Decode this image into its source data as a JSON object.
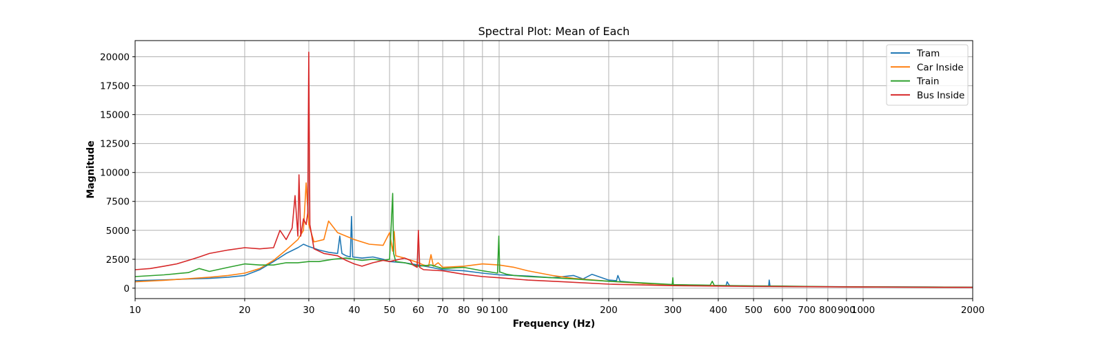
{
  "chart_data": {
    "type": "line",
    "title": "Spectral Plot: Mean of Each",
    "xlabel": "Frequency (Hz)",
    "ylabel": "Magnitude",
    "xscale": "log",
    "xlim": [
      10,
      2000
    ],
    "ylim": [
      -900,
      21400
    ],
    "x_ticks": [
      10,
      20,
      30,
      40,
      50,
      60,
      70,
      80,
      90,
      100,
      200,
      300,
      400,
      500,
      600,
      700,
      800,
      900,
      1000,
      2000
    ],
    "y_ticks": [
      0,
      2500,
      5000,
      7500,
      10000,
      12500,
      15000,
      17500,
      20000
    ],
    "grid": true,
    "legend_position": "upper right",
    "series": [
      {
        "name": "Tram",
        "color": "#1f77b4",
        "x": [
          10,
          12,
          14,
          16,
          18,
          20,
          22,
          24,
          26,
          28,
          29,
          30,
          32,
          34,
          36,
          36.5,
          37,
          38,
          39,
          39.3,
          39.6,
          42,
          45,
          48,
          50,
          55,
          60,
          65,
          70,
          80,
          90,
          100,
          120,
          140,
          160,
          170,
          180,
          200,
          210,
          212,
          215,
          250,
          300,
          400,
          420,
          423,
          430,
          500,
          550,
          552,
          555,
          600,
          700,
          800,
          1000,
          1500,
          2000
        ],
        "y": [
          650,
          720,
          800,
          850,
          950,
          1100,
          1600,
          2300,
          3000,
          3500,
          3800,
          3600,
          3300,
          3100,
          3000,
          4500,
          3000,
          2800,
          2700,
          6200,
          2700,
          2600,
          2700,
          2500,
          2300,
          2200,
          2000,
          1800,
          1600,
          1500,
          1300,
          1150,
          1050,
          900,
          1100,
          800,
          1200,
          700,
          650,
          1100,
          600,
          400,
          300,
          220,
          200,
          550,
          200,
          180,
          170,
          700,
          170,
          160,
          140,
          130,
          120,
          100,
          80
        ]
      },
      {
        "name": "Car Inside",
        "color": "#ff7f0e",
        "x": [
          10,
          12,
          14,
          16,
          18,
          20,
          22,
          24,
          26,
          28,
          29,
          29.5,
          30,
          31,
          33,
          34,
          36,
          38,
          40,
          44,
          48,
          50,
          51,
          51.5,
          52,
          55,
          60,
          62,
          64,
          65,
          66,
          68,
          70,
          80,
          90,
          100,
          110,
          120,
          140,
          160,
          200,
          250,
          300,
          400,
          500,
          700,
          1000,
          1500,
          2000
        ],
        "y": [
          550,
          680,
          820,
          950,
          1100,
          1300,
          1700,
          2400,
          3300,
          4200,
          5000,
          9100,
          5500,
          4000,
          4200,
          5800,
          4800,
          4500,
          4200,
          3800,
          3700,
          4800,
          3200,
          4900,
          2800,
          2600,
          2200,
          2000,
          1900,
          2900,
          1900,
          2200,
          1800,
          1900,
          2100,
          2000,
          1800,
          1500,
          1100,
          850,
          600,
          400,
          300,
          220,
          180,
          140,
          110,
          90,
          70
        ]
      },
      {
        "name": "Train",
        "color": "#2ca02c",
        "x": [
          10,
          12,
          14,
          15,
          16,
          18,
          20,
          22,
          24,
          26,
          28,
          30,
          32,
          35,
          38,
          40,
          42,
          45,
          48,
          50,
          50.6,
          51,
          51.3,
          52,
          55,
          60,
          65,
          70,
          80,
          90,
          99,
          99.8,
          100.4,
          105,
          110,
          120,
          140,
          160,
          200,
          250,
          299,
          300,
          301,
          380,
          385,
          390,
          500,
          600,
          700,
          800,
          1000,
          1500,
          2000
        ],
        "y": [
          1000,
          1150,
          1350,
          1700,
          1450,
          1800,
          2100,
          2000,
          2000,
          2200,
          2200,
          2300,
          2300,
          2500,
          2600,
          2500,
          2400,
          2500,
          2400,
          2500,
          5800,
          8200,
          3000,
          2300,
          2200,
          1900,
          2000,
          1700,
          1800,
          1500,
          1300,
          4500,
          1400,
          1200,
          1100,
          1000,
          900,
          800,
          600,
          450,
          320,
          900,
          300,
          260,
          600,
          240,
          200,
          180,
          150,
          130,
          110,
          100,
          80
        ]
      },
      {
        "name": "Bus Inside",
        "color": "#d62728",
        "x": [
          10,
          11,
          12,
          13,
          14,
          15,
          16,
          18,
          20,
          22,
          24,
          25,
          26,
          27,
          27.5,
          28,
          28.2,
          28.5,
          29,
          29.5,
          29.8,
          30,
          30.2,
          31,
          33,
          36,
          38,
          40,
          42,
          45,
          48,
          50,
          55,
          57,
          58,
          59.5,
          60,
          60.5,
          62,
          70,
          80,
          90,
          100,
          120,
          150,
          200,
          300,
          500,
          1000,
          1500,
          2000
        ],
        "y": [
          1600,
          1700,
          1900,
          2100,
          2400,
          2700,
          3000,
          3300,
          3500,
          3400,
          3500,
          5000,
          4200,
          5200,
          8000,
          4500,
          9800,
          4500,
          6000,
          5500,
          6500,
          20400,
          5500,
          3400,
          3000,
          2800,
          2400,
          2100,
          1900,
          2200,
          2400,
          2300,
          2600,
          2400,
          2000,
          1800,
          5000,
          1800,
          1600,
          1500,
          1200,
          1000,
          900,
          700,
          550,
          350,
          220,
          150,
          100,
          80,
          70
        ]
      }
    ]
  }
}
